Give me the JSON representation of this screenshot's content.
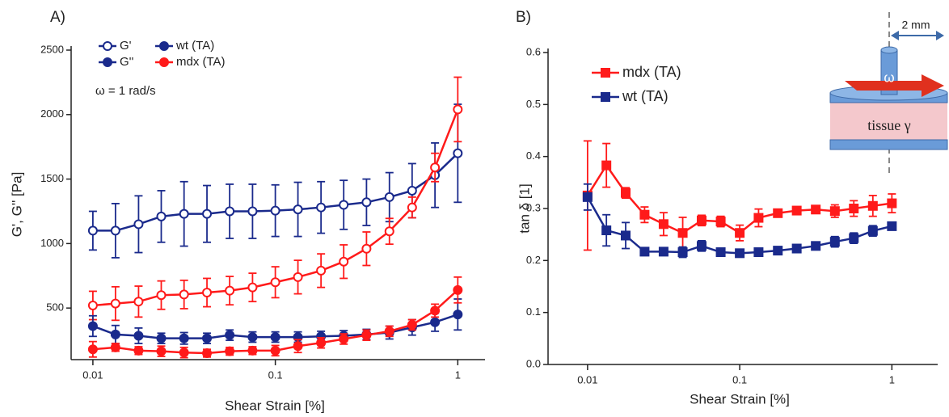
{
  "chart_data": [
    {
      "type": "line",
      "title": "A)",
      "x_label": "Shear Strain [%]",
      "y_label": "G', G'' [Pa]",
      "annotation": "ω = 1 rad/s",
      "xscale": "log",
      "xlim": [
        0.0076,
        1.41
      ],
      "xticks": [
        0.01,
        0.1,
        1
      ],
      "ylim": [
        100,
        2500
      ],
      "yticks": [
        500,
        1000,
        1500,
        2000,
        2500
      ],
      "x": [
        0.01,
        0.0133,
        0.0178,
        0.0237,
        0.0316,
        0.0422,
        0.0562,
        0.075,
        0.1,
        0.133,
        0.178,
        0.237,
        0.316,
        0.422,
        0.562,
        0.75,
        1
      ],
      "legend": [
        {
          "label": "G'",
          "color": "#1a2a8c",
          "marker": "open"
        },
        {
          "label": "G''",
          "color": "#1a2a8c",
          "marker": "filled"
        },
        {
          "label": "wt (TA)",
          "color": "#1a2a8c",
          "marker": "filled"
        },
        {
          "label": "mdx (TA)",
          "color": "#ff1a1a",
          "marker": "filled"
        }
      ],
      "series": [
        {
          "color": "#1a2a8c",
          "marker": "open",
          "shape": "circle",
          "values": [
            1100,
            1100,
            1150,
            1210,
            1230,
            1230,
            1250,
            1250,
            1255,
            1265,
            1280,
            1300,
            1320,
            1360,
            1410,
            1530,
            1700
          ],
          "errors": [
            150,
            210,
            220,
            200,
            250,
            220,
            210,
            210,
            200,
            210,
            200,
            190,
            180,
            190,
            210,
            250,
            380
          ]
        },
        {
          "color": "#ff1a1a",
          "marker": "open",
          "shape": "circle",
          "values": [
            520,
            535,
            550,
            600,
            605,
            620,
            635,
            660,
            700,
            740,
            790,
            860,
            960,
            1095,
            1280,
            1590,
            2040
          ],
          "errors": [
            110,
            130,
            120,
            110,
            110,
            110,
            110,
            110,
            120,
            130,
            130,
            130,
            130,
            100,
            80,
            110,
            250
          ]
        },
        {
          "color": "#1a2a8c",
          "marker": "filled",
          "shape": "circle",
          "values": [
            360,
            295,
            285,
            265,
            265,
            265,
            290,
            275,
            275,
            275,
            280,
            285,
            295,
            310,
            350,
            390,
            450
          ],
          "errors": [
            80,
            70,
            60,
            40,
            45,
            40,
            40,
            40,
            40,
            40,
            40,
            40,
            40,
            50,
            60,
            70,
            120
          ]
        },
        {
          "color": "#ff1a1a",
          "marker": "filled",
          "shape": "circle",
          "values": [
            180,
            195,
            170,
            165,
            155,
            150,
            165,
            170,
            170,
            205,
            230,
            260,
            290,
            320,
            370,
            480,
            640
          ],
          "errors": [
            60,
            30,
            30,
            40,
            40,
            30,
            30,
            30,
            40,
            50,
            40,
            40,
            40,
            40,
            40,
            50,
            100
          ]
        }
      ]
    },
    {
      "type": "line",
      "title": "B)",
      "x_label": "Shear Strain [%]",
      "y_label": "tan δ [1]",
      "xscale": "log",
      "xlim": [
        0.0055,
        2
      ],
      "xticks": [
        0.01,
        0.1,
        1
      ],
      "ylim": [
        0,
        0.6
      ],
      "yticks": [
        {
          "value": 0,
          "label": "0.0"
        },
        0.1,
        0.2,
        0.3,
        0.4,
        0.5,
        0.6
      ],
      "x": [
        0.01,
        0.0133,
        0.0178,
        0.0237,
        0.0316,
        0.0422,
        0.0562,
        0.075,
        0.1,
        0.133,
        0.178,
        0.237,
        0.316,
        0.422,
        0.562,
        0.75,
        1
      ],
      "inset": {
        "dimension": "2 mm",
        "rotation": "ω",
        "sample": "tissue γ"
      },
      "series": [
        {
          "name": "mdx (TA)",
          "color": "#ff1a1a",
          "marker": "filled",
          "shape": "square",
          "values": [
            0.325,
            0.383,
            0.33,
            0.288,
            0.27,
            0.253,
            0.277,
            0.275,
            0.253,
            0.282,
            0.291,
            0.296,
            0.298,
            0.295,
            0.3,
            0.305,
            0.31
          ],
          "errors": [
            0.105,
            0.042,
            0.01,
            0.015,
            0.022,
            0.03,
            0.01,
            0.01,
            0.015,
            0.017,
            0.005,
            0.005,
            0.006,
            0.012,
            0.015,
            0.02,
            0.018
          ]
        },
        {
          "name": "wt (TA)",
          "color": "#1a2a8c",
          "marker": "filled",
          "shape": "square",
          "values": [
            0.322,
            0.258,
            0.248,
            0.217,
            0.217,
            0.216,
            0.228,
            0.216,
            0.214,
            0.216,
            0.219,
            0.223,
            0.228,
            0.236,
            0.243,
            0.257,
            0.266
          ],
          "errors": [
            0.025,
            0.03,
            0.025,
            0.005,
            0.005,
            0.01,
            0.01,
            0.007,
            0.007,
            0.005,
            0.005,
            0.005,
            0.007,
            0.01,
            0.01,
            0.01,
            0.007
          ]
        }
      ]
    }
  ]
}
